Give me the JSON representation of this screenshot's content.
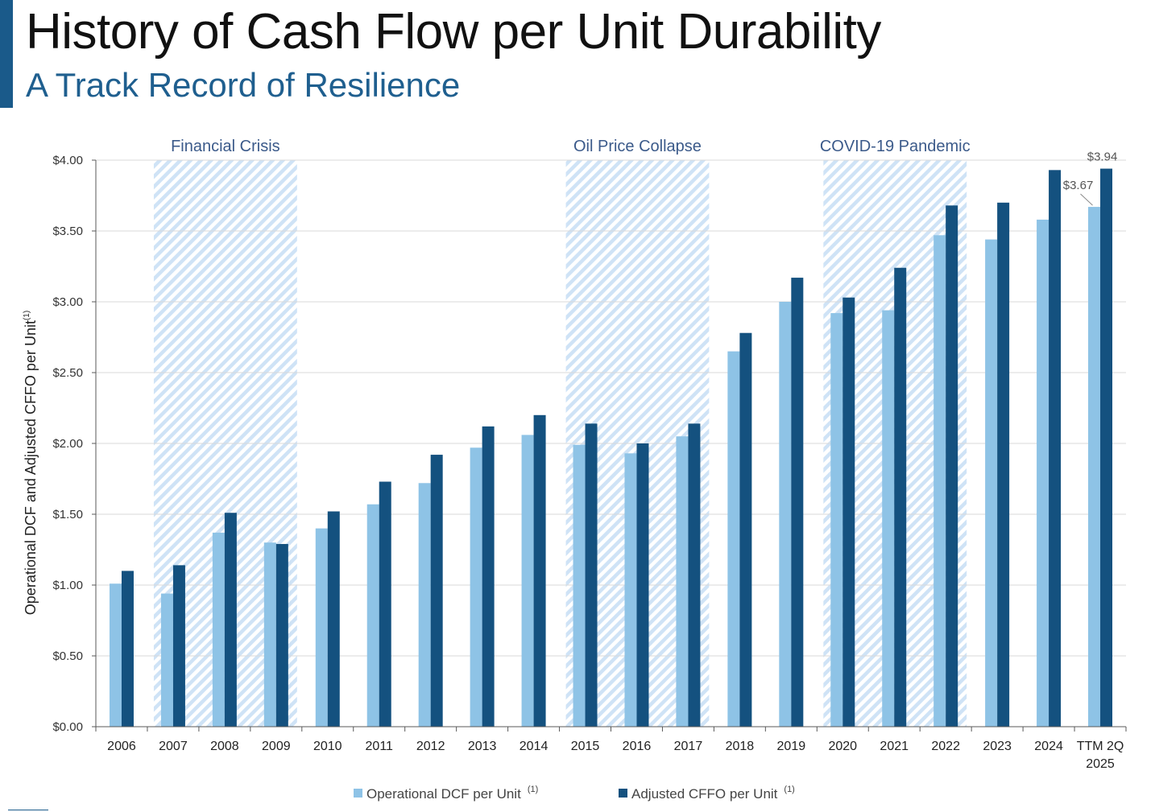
{
  "title": "History of Cash Flow per Unit Durability",
  "subtitle": "A Track Record of Resilience",
  "colors": {
    "accent": "#1a5a8a",
    "subtitle": "#1f5f8f",
    "series_light": "#8ec3e6",
    "series_dark": "#14517f",
    "shade_stripe": "#cfe3f6",
    "annotation_text": "#3b5a8a"
  },
  "chart_data": {
    "type": "bar",
    "title": "",
    "xlabel": "",
    "ylabel": "Operational DCF and Adjusted CFFO per Unit",
    "ylabel_superscript": "(1)",
    "ylim": [
      0,
      4.0
    ],
    "yticks": [
      "$0.00",
      "$0.50",
      "$1.00",
      "$1.50",
      "$2.00",
      "$2.50",
      "$3.00",
      "$3.50",
      "$4.00"
    ],
    "ytick_values": [
      0,
      0.5,
      1.0,
      1.5,
      2.0,
      2.5,
      3.0,
      3.5,
      4.0
    ],
    "grid": true,
    "legend_position": "bottom",
    "categories": [
      [
        "2006"
      ],
      [
        "2007"
      ],
      [
        "2008"
      ],
      [
        "2009"
      ],
      [
        "2010"
      ],
      [
        "2011"
      ],
      [
        "2012"
      ],
      [
        "2013"
      ],
      [
        "2014"
      ],
      [
        "2015"
      ],
      [
        "2016"
      ],
      [
        "2017"
      ],
      [
        "2018"
      ],
      [
        "2019"
      ],
      [
        "2020"
      ],
      [
        "2021"
      ],
      [
        "2022"
      ],
      [
        "2023"
      ],
      [
        "2024"
      ],
      [
        "TTM 2Q",
        "2025"
      ]
    ],
    "series": [
      {
        "name": "Operational DCF per Unit",
        "superscript": "(1)",
        "color": "#8ec3e6",
        "values": [
          1.01,
          0.94,
          1.37,
          1.3,
          1.4,
          1.57,
          1.72,
          1.97,
          2.06,
          1.99,
          1.93,
          2.05,
          2.65,
          3.0,
          2.92,
          2.94,
          3.47,
          3.44,
          3.58,
          3.67
        ]
      },
      {
        "name": "Adjusted CFFO per Unit",
        "superscript": "(1)",
        "color": "#14517f",
        "values": [
          1.1,
          1.14,
          1.51,
          1.29,
          1.52,
          1.73,
          1.92,
          2.12,
          2.2,
          2.14,
          2.0,
          2.14,
          2.78,
          3.17,
          3.03,
          3.24,
          3.68,
          3.7,
          3.93,
          3.94
        ]
      }
    ],
    "shaded_periods": [
      {
        "label": "Financial Crisis",
        "from": "2007",
        "to": "2009"
      },
      {
        "label": "Oil Price Collapse",
        "from": "2015",
        "to": "2017"
      },
      {
        "label": "COVID-19 Pandemic",
        "from": "2020",
        "to": "2022"
      }
    ],
    "annotations": [
      {
        "text": "$3.94",
        "series": 1,
        "category": 19
      },
      {
        "text": "$3.67",
        "series": 0,
        "category": 19
      }
    ]
  }
}
